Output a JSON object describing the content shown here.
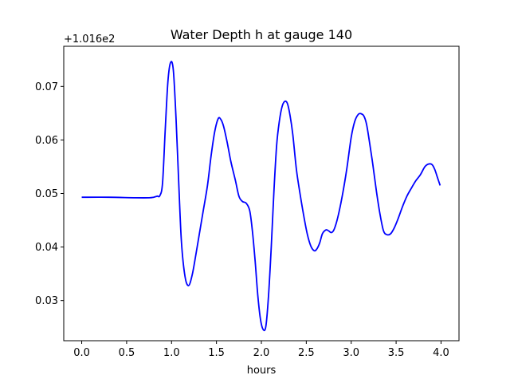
{
  "chart_data": {
    "type": "line",
    "title": "Water Depth h at gauge 140",
    "xlabel": "hours",
    "ylabel": "",
    "y_offset_text": "+1.016e2",
    "xlim": [
      -0.2,
      4.2
    ],
    "ylim": [
      0.0225,
      0.0775
    ],
    "x_ticks": [
      0.0,
      0.5,
      1.0,
      1.5,
      2.0,
      2.5,
      3.0,
      3.5,
      4.0
    ],
    "x_tick_labels": [
      "0.0",
      "0.5",
      "1.0",
      "1.5",
      "2.0",
      "2.5",
      "3.0",
      "3.5",
      "4.0"
    ],
    "y_ticks": [
      0.03,
      0.04,
      0.05,
      0.06,
      0.07
    ],
    "y_tick_labels": [
      "0.03",
      "0.04",
      "0.05",
      "0.06",
      "0.07"
    ],
    "grid": false,
    "series": [
      {
        "color": "#0000ff",
        "x": [
          0.0,
          0.3,
          0.6,
          0.75,
          0.8,
          0.84,
          0.87,
          0.9,
          0.93,
          0.96,
          0.99,
          1.02,
          1.05,
          1.08,
          1.11,
          1.15,
          1.19,
          1.23,
          1.27,
          1.31,
          1.35,
          1.4,
          1.44,
          1.48,
          1.52,
          1.55,
          1.58,
          1.62,
          1.66,
          1.71,
          1.75,
          1.79,
          1.83,
          1.87,
          1.9,
          1.93,
          1.96,
          1.99,
          2.02,
          2.05,
          2.08,
          2.11,
          2.14,
          2.17,
          2.2,
          2.23,
          2.26,
          2.29,
          2.32,
          2.35,
          2.39,
          2.43,
          2.47,
          2.51,
          2.55,
          2.59,
          2.62,
          2.65,
          2.68,
          2.72,
          2.75,
          2.78,
          2.81,
          2.85,
          2.9,
          2.95,
          3.0,
          3.04,
          3.08,
          3.11,
          3.14,
          3.17,
          3.2,
          3.24,
          3.28,
          3.32,
          3.36,
          3.4,
          3.44,
          3.48,
          3.52,
          3.57,
          3.62,
          3.67,
          3.72,
          3.77,
          3.82,
          3.86,
          3.9,
          3.93,
          3.96,
          3.99
        ],
        "values": [
          0.0493,
          0.0493,
          0.0492,
          0.0492,
          0.0493,
          0.0495,
          0.0496,
          0.052,
          0.062,
          0.071,
          0.0745,
          0.073,
          0.064,
          0.052,
          0.041,
          0.0345,
          0.0328,
          0.0348,
          0.0385,
          0.0425,
          0.0465,
          0.0515,
          0.057,
          0.0615,
          0.064,
          0.0638,
          0.0625,
          0.0595,
          0.056,
          0.0525,
          0.0495,
          0.0485,
          0.0482,
          0.0468,
          0.043,
          0.0375,
          0.031,
          0.0265,
          0.0246,
          0.0252,
          0.031,
          0.04,
          0.0505,
          0.059,
          0.0635,
          0.0662,
          0.0672,
          0.0668,
          0.0645,
          0.061,
          0.0545,
          0.05,
          0.046,
          0.0425,
          0.0402,
          0.0393,
          0.0397,
          0.0408,
          0.0425,
          0.0432,
          0.043,
          0.0427,
          0.0433,
          0.0455,
          0.0495,
          0.0545,
          0.0605,
          0.0635,
          0.0648,
          0.0649,
          0.0645,
          0.063,
          0.06,
          0.0555,
          0.0505,
          0.0462,
          0.043,
          0.0423,
          0.0425,
          0.0436,
          0.0452,
          0.0475,
          0.0495,
          0.051,
          0.0524,
          0.0535,
          0.055,
          0.0555,
          0.0554,
          0.0545,
          0.053,
          0.0515
        ]
      }
    ]
  }
}
